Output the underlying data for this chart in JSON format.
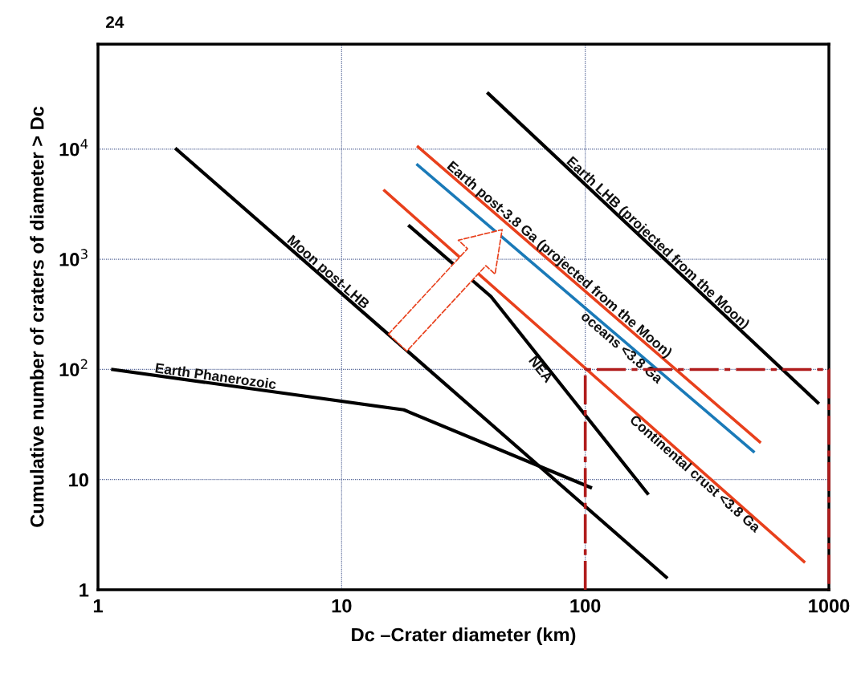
{
  "chart_data": {
    "type": "line",
    "xlabel": "Dc –Crater diameter (km)",
    "ylabel": "Cumulative number of craters of diameter > Dc",
    "log": "xy",
    "xlim": [
      1,
      1000
    ],
    "ylim": [
      1,
      90000
    ],
    "xticks": [
      1,
      10,
      100,
      1000
    ],
    "yticks": [
      1,
      10,
      {
        "value": 100,
        "label": "10$^{2}$"
      },
      {
        "value": 1000,
        "label": "10$^{3}$"
      },
      {
        "value": 10000,
        "label": "10$^{4}$"
      }
    ],
    "grid": true,
    "line_style": "solid",
    "marker": "none",
    "series": [
      {
        "name": "Earth Phanerozoic",
        "color": "#000000",
        "x": [
          1.15,
          18,
          105
        ],
        "values": [
          100,
          43,
          8.5
        ]
      },
      {
        "name": "Moon post-LHB",
        "color": "#000000",
        "x": [
          2.1,
          215
        ],
        "values": [
          10000,
          1.3
        ]
      },
      {
        "name": "NEA",
        "color": "#000000",
        "x": [
          19,
          41,
          180
        ],
        "values": [
          2000,
          460,
          7.5
        ]
      },
      {
        "name": "Continental crust <3.8 Ga",
        "color": "#e8401c",
        "x": [
          15,
          790
        ],
        "values": [
          4200,
          1.8
        ]
      },
      {
        "name": "oceans <3.8 Ga",
        "color": "#1a7ab8",
        "x": [
          20.5,
          490
        ],
        "values": [
          7200,
          18
        ]
      },
      {
        "name": "Earth post-3.8 Ga (projected from the Moon)",
        "color": "#e8401c",
        "x": [
          20.6,
          520
        ],
        "values": [
          10500,
          22
        ]
      },
      {
        "name": "Earth LHB (projected from the Moon)",
        "color": "#000000",
        "x": [
          40,
          900
        ],
        "values": [
          32000,
          50
        ]
      },
      {
        "color": "#b01c1c",
        "line_style": "dashdot",
        "x": [
          100,
          100,
          1000,
          1000
        ],
        "values": [
          1,
          100,
          100,
          1
        ]
      }
    ],
    "annotations": [
      "24"
    ]
  }
}
